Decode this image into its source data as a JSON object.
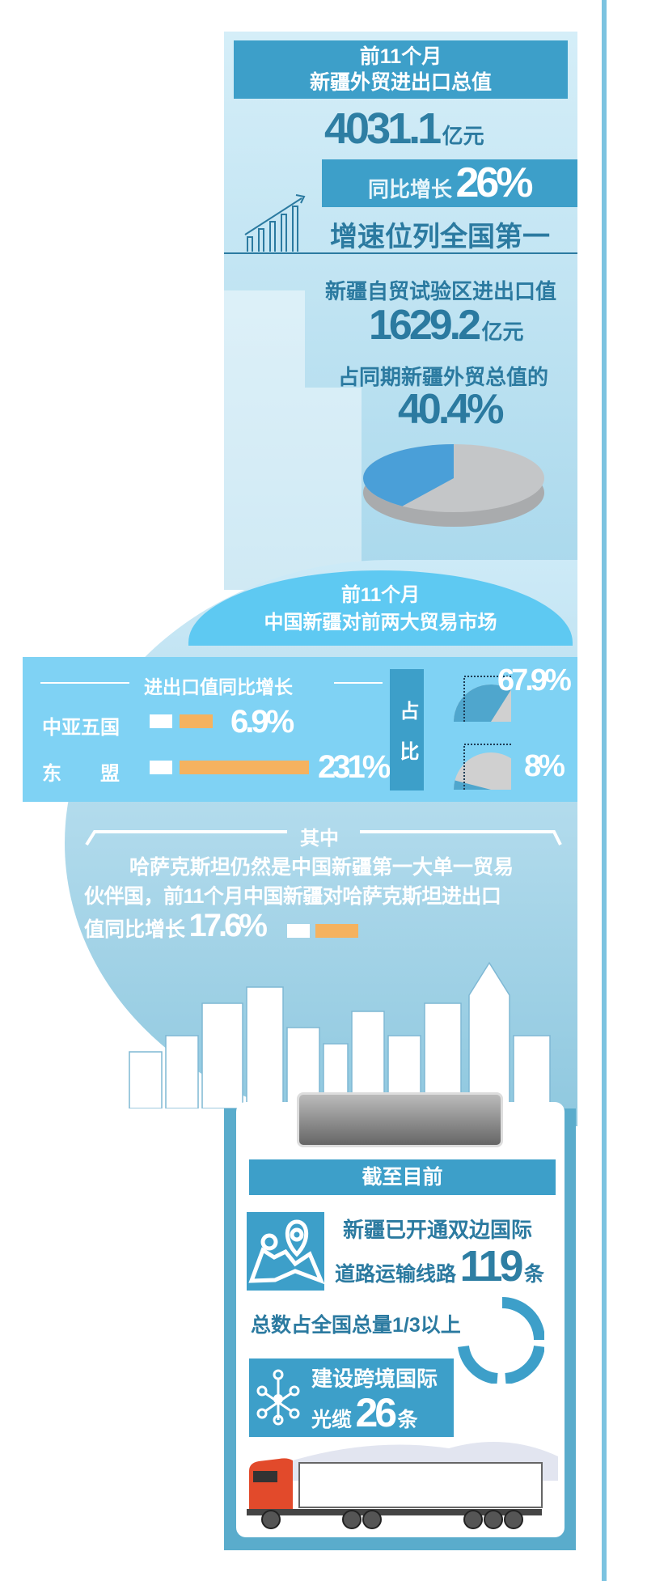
{
  "section1": {
    "title_line1": "前11个月",
    "title_line2": "新疆外贸进出口总值",
    "total_value": "4031.1",
    "total_unit": "亿元",
    "growth_label": "同比增长",
    "growth_value": "26%",
    "rank_text": "增速位列全国第一",
    "ftz_label": "新疆自贸试验区进出口值",
    "ftz_value": "1629.2",
    "ftz_unit": "亿元",
    "share_label": "占同期新疆外贸总值的",
    "share_value": "40.4%",
    "pie_share": 40.4,
    "colors": {
      "blue": "#3d9fc9",
      "dark_text": "#2b7aa0",
      "pie_blue": "#4a9fd8",
      "pie_gray": "#c4c6c8"
    }
  },
  "section2": {
    "title_line1": "前11个月",
    "title_line2": "中国新疆对前两大贸易市场",
    "growth_header": "进出口值同比增长",
    "share_header": "占比",
    "markets": [
      {
        "name": "中亚五国",
        "growth": "6.9%",
        "growth_value": 6.9,
        "share": "67.9%",
        "share_value": 67.9
      },
      {
        "name": "东　　盟",
        "growth": "231%",
        "growth_value": 231,
        "share": "8%",
        "share_value": 8
      }
    ],
    "colors": {
      "bar": "#f5b25f",
      "panel": "#7fd2f4",
      "header": "#5ec9f2"
    }
  },
  "section3": {
    "heading": "其中",
    "text_line1": "哈萨克斯坦仍然是中国新疆第一大单一贸易",
    "text_line2": "伙伴国，前11个月中国新疆对哈萨克斯坦进出口",
    "text_line3_prefix": "值同比增长",
    "growth_value": "17.6%"
  },
  "section4": {
    "heading": "截至目前",
    "road_line1": "新疆已开通双边国际",
    "road_line2": "道路运输线路",
    "road_count": "119",
    "road_unit": "条",
    "share_text": "总数占全国总量1/3以上",
    "cable_line1": "建设跨境国际",
    "cable_line2": "光缆",
    "cable_count": "26",
    "cable_unit": "条",
    "icons": [
      "map-pin-icon",
      "network-icon",
      "truck-icon"
    ]
  }
}
